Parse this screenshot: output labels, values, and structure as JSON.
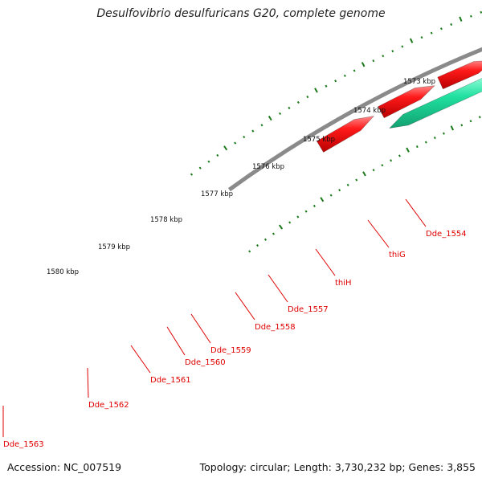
{
  "title": "Desulfovibrio desulfuricans G20, complete genome",
  "footer": {
    "accession": "Accession: NC_007519",
    "summary": "Topology: circular; Length: 3,730,232 bp; Genes: 3,855"
  },
  "kbp_labels": [
    "1573 kbp",
    "1574 kbp",
    "1575 kbp",
    "1576 kbp",
    "1577 kbp",
    "1578 kbp",
    "1579 kbp",
    "1580 kbp"
  ],
  "gene_labels": [
    "Dde_1554",
    "thiG",
    "thiH",
    "Dde_1557",
    "Dde_1558",
    "Dde_1559",
    "Dde_1560",
    "Dde_1561",
    "Dde_1562",
    "Dde_1563"
  ],
  "colors": {
    "backbone": "#8a8a8a",
    "forward_cds": "#ff0000",
    "reverse_cds": "#0000e0",
    "ticks": "#1a7a1a",
    "label": "#e00000",
    "Dde_1554": "#5a8fc8",
    "thiH": "#c0c0c0",
    "Dde_1559": "#b8b070",
    "Dde_1562": "#6a8a20",
    "Dde_1563": "#20e0a0"
  }
}
